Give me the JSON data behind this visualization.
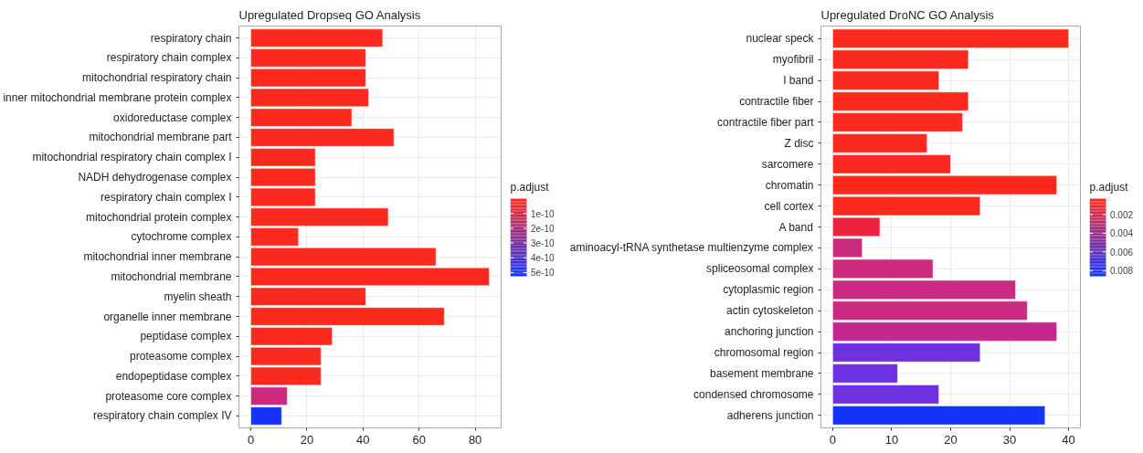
{
  "chart_data": [
    {
      "type": "bar",
      "orientation": "horizontal",
      "title": "Upregulated Dropseq GO Analysis",
      "categories": [
        "respiratory chain",
        "respiratory chain complex",
        "mitochondrial respiratory chain",
        "inner mitochondrial membrane protein complex",
        "oxidoreductase complex",
        "mitochondrial membrane part",
        "mitochondrial respiratory chain complex I",
        "NADH dehydrogenase complex",
        "respiratory chain complex I",
        "mitochondrial protein complex",
        "cytochrome complex",
        "mitochondrial inner membrane",
        "mitochondrial membrane",
        "myelin sheath",
        "organelle inner membrane",
        "peptidase complex",
        "proteasome complex",
        "endopeptidase complex",
        "proteasome core complex",
        "respiratory chain complex IV"
      ],
      "values": [
        47,
        41,
        41,
        42,
        36,
        51,
        23,
        23,
        23,
        49,
        17,
        66,
        85,
        41,
        69,
        29,
        25,
        25,
        13,
        11
      ],
      "colors": [
        "#fc2a1e",
        "#fc2a1e",
        "#fc2a1e",
        "#fc2a1e",
        "#fc2a1e",
        "#fc2a1e",
        "#fc2a1e",
        "#fc2a1e",
        "#fc2a1e",
        "#fc2a1e",
        "#fc2a1e",
        "#fc2a1e",
        "#fc2a1e",
        "#fc2a1e",
        "#fc2a1e",
        "#fc2a1e",
        "#fc2a1e",
        "#fc2a1e",
        "#cc2a7f",
        "#1533fb"
      ],
      "xlim": [
        -4.25,
        89.25
      ],
      "xticks": [
        0,
        20,
        40,
        60,
        80
      ],
      "grid": true,
      "clabel": "p.adjust",
      "clim": [
        0,
        5.25e-10
      ],
      "cticks": [
        {
          "value": 1e-10,
          "label": "1e-10"
        },
        {
          "value": 2e-10,
          "label": "2e-10"
        },
        {
          "value": 3e-10,
          "label": "3e-10"
        },
        {
          "value": 4e-10,
          "label": "4e-10"
        },
        {
          "value": 5e-10,
          "label": "5e-10"
        }
      ]
    },
    {
      "type": "bar",
      "orientation": "horizontal",
      "title": "Upregulated DroNC GO Analysis",
      "categories": [
        "nuclear speck",
        "myofibril",
        "I band",
        "contractile fiber",
        "contractile fiber part",
        "Z disc",
        "sarcomere",
        "chromatin",
        "cell cortex",
        "A band",
        "aminoacyl-tRNA synthetase multienzyme complex",
        "spliceosomal complex",
        "cytoplasmic region",
        "actin cytoskeleton",
        "anchoring junction",
        "chromosomal region",
        "basement membrane",
        "condensed chromosome",
        "adherens junction"
      ],
      "values": [
        40,
        23,
        18,
        23,
        22,
        16,
        20,
        38,
        25,
        8,
        5,
        17,
        31,
        33,
        38,
        25,
        11,
        18,
        36
      ],
      "colors": [
        "#fc2a1e",
        "#fc2a1e",
        "#fc2a1e",
        "#fc2a1e",
        "#fc2a1e",
        "#fc2a1e",
        "#fc2a1e",
        "#fc2a1e",
        "#fc2a1e",
        "#ee2240",
        "#cc2a80",
        "#cc2a7f",
        "#cc2a80",
        "#cc2a80",
        "#c4288d",
        "#6f31e0",
        "#6e31e0",
        "#6e31e0",
        "#1434fb"
      ],
      "xlim": [
        -2,
        42
      ],
      "xticks": [
        0,
        10,
        20,
        30,
        40
      ],
      "grid": true,
      "clabel": "p.adjust",
      "clim": [
        0.0003,
        0.0086
      ],
      "cticks": [
        0.002,
        0.004,
        0.006,
        0.008
      ]
    }
  ]
}
